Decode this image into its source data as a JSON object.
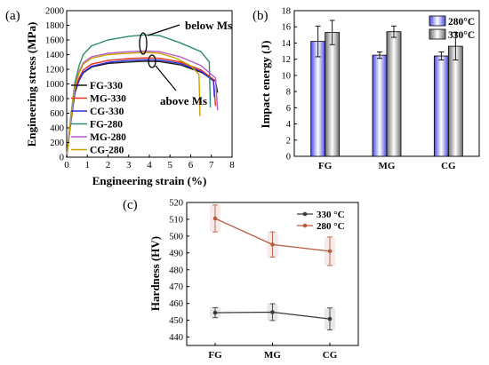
{
  "chart_data": [
    {
      "panel": "(a)",
      "type": "line",
      "xlabel": "Engineering strain (%)",
      "ylabel": "Engineering stress (MPa)",
      "xlim": [
        0,
        8
      ],
      "ylim": [
        0,
        2000
      ],
      "xticks": [
        0,
        1,
        2,
        3,
        4,
        5,
        6,
        7,
        8
      ],
      "yticks": [
        0,
        200,
        400,
        600,
        800,
        1000,
        1200,
        1400,
        1600,
        1800,
        2000
      ],
      "legend": "bottom-right",
      "annotations": [
        "below Ms",
        "above Ms"
      ],
      "series": [
        {
          "name": "FG-330",
          "color": "#1a1a1a",
          "points": [
            [
              0,
              0
            ],
            [
              0.2,
              500
            ],
            [
              0.4,
              900
            ],
            [
              0.6,
              1050
            ],
            [
              0.8,
              1150
            ],
            [
              1.2,
              1230
            ],
            [
              2,
              1280
            ],
            [
              3,
              1300
            ],
            [
              3.8,
              1310
            ],
            [
              4.5,
              1305
            ],
            [
              5.5,
              1260
            ],
            [
              6.5,
              1160
            ],
            [
              7.2,
              1040
            ],
            [
              7.3,
              880
            ]
          ]
        },
        {
          "name": "MG-330",
          "color": "#e8301c",
          "points": [
            [
              0,
              0
            ],
            [
              0.2,
              500
            ],
            [
              0.4,
              920
            ],
            [
              0.6,
              1080
            ],
            [
              0.8,
              1190
            ],
            [
              1.2,
              1270
            ],
            [
              2,
              1320
            ],
            [
              3,
              1345
            ],
            [
              3.8,
              1355
            ],
            [
              4.5,
              1350
            ],
            [
              5.5,
              1300
            ],
            [
              6.5,
              1190
            ],
            [
              7.1,
              1060
            ],
            [
              7.2,
              700
            ]
          ]
        },
        {
          "name": "CG-330",
          "color": "#2b2bd6",
          "points": [
            [
              0,
              0
            ],
            [
              0.2,
              480
            ],
            [
              0.4,
              880
            ],
            [
              0.6,
              1050
            ],
            [
              0.8,
              1160
            ],
            [
              1.2,
              1240
            ],
            [
              2,
              1295
            ],
            [
              3,
              1320
            ],
            [
              3.8,
              1330
            ],
            [
              4.5,
              1325
            ],
            [
              5.5,
              1280
            ],
            [
              6.5,
              1170
            ],
            [
              7.1,
              1040
            ],
            [
              7.15,
              820
            ]
          ]
        },
        {
          "name": "FG-280",
          "color": "#2e8b6b",
          "points": [
            [
              0,
              0
            ],
            [
              0.2,
              560
            ],
            [
              0.4,
              1020
            ],
            [
              0.6,
              1250
            ],
            [
              0.8,
              1400
            ],
            [
              1.2,
              1520
            ],
            [
              2,
              1600
            ],
            [
              3,
              1650
            ],
            [
              3.8,
              1670
            ],
            [
              4.5,
              1660
            ],
            [
              5.5,
              1560
            ],
            [
              6.5,
              1440
            ],
            [
              6.9,
              1300
            ],
            [
              6.95,
              680
            ]
          ]
        },
        {
          "name": "MG-280",
          "color": "#b45ad0",
          "points": [
            [
              0,
              0
            ],
            [
              0.2,
              540
            ],
            [
              0.4,
              980
            ],
            [
              0.6,
              1170
            ],
            [
              0.8,
              1290
            ],
            [
              1.2,
              1370
            ],
            [
              2,
              1420
            ],
            [
              3,
              1440
            ],
            [
              3.8,
              1450
            ],
            [
              4.5,
              1440
            ],
            [
              5.5,
              1370
            ],
            [
              6.5,
              1250
            ],
            [
              7.2,
              1080
            ],
            [
              7.3,
              640
            ]
          ]
        },
        {
          "name": "CG-280",
          "color": "#c9a200",
          "points": [
            [
              0,
              0
            ],
            [
              0.2,
              520
            ],
            [
              0.4,
              960
            ],
            [
              0.6,
              1150
            ],
            [
              0.8,
              1270
            ],
            [
              1.2,
              1350
            ],
            [
              2,
              1400
            ],
            [
              3,
              1420
            ],
            [
              3.8,
              1430
            ],
            [
              4.5,
              1420
            ],
            [
              5.2,
              1360
            ],
            [
              6,
              1250
            ],
            [
              6.4,
              1130
            ],
            [
              6.45,
              560
            ]
          ]
        }
      ]
    },
    {
      "panel": "(b)",
      "type": "bar",
      "ylabel": "Impact energy (J)",
      "ylim": [
        0,
        18
      ],
      "yticks": [
        0,
        2,
        4,
        6,
        8,
        10,
        12,
        14,
        16,
        18
      ],
      "categories": [
        "FG",
        "MG",
        "CG"
      ],
      "legend": "top-right",
      "series": [
        {
          "name": "280°C",
          "color": "#4a4ae0",
          "values": [
            14.2,
            12.5,
            12.4
          ],
          "errors": [
            1.9,
            0.4,
            0.5
          ]
        },
        {
          "name": "330°C",
          "color": "#6e6e6e",
          "values": [
            15.3,
            15.4,
            13.6
          ],
          "errors": [
            1.5,
            0.7,
            1.7
          ]
        }
      ]
    },
    {
      "panel": "(c)",
      "type": "line",
      "ylabel": "Hardness (HV)",
      "ylim": [
        435,
        520
      ],
      "yticks": [
        440,
        450,
        460,
        470,
        480,
        490,
        500,
        510,
        520
      ],
      "categories": [
        "FG",
        "MG",
        "CG"
      ],
      "legend": "top-right",
      "series": [
        {
          "name": "330 °C",
          "color": "#3a3a3a",
          "values": [
            454.5,
            454.8,
            450.8
          ],
          "errors": [
            3.0,
            5.0,
            6.5
          ]
        },
        {
          "name": "280 °C",
          "color": "#b85a3e",
          "values": [
            510.5,
            495.0,
            491.0
          ],
          "errors": [
            8.0,
            7.5,
            8.5
          ]
        }
      ]
    }
  ]
}
